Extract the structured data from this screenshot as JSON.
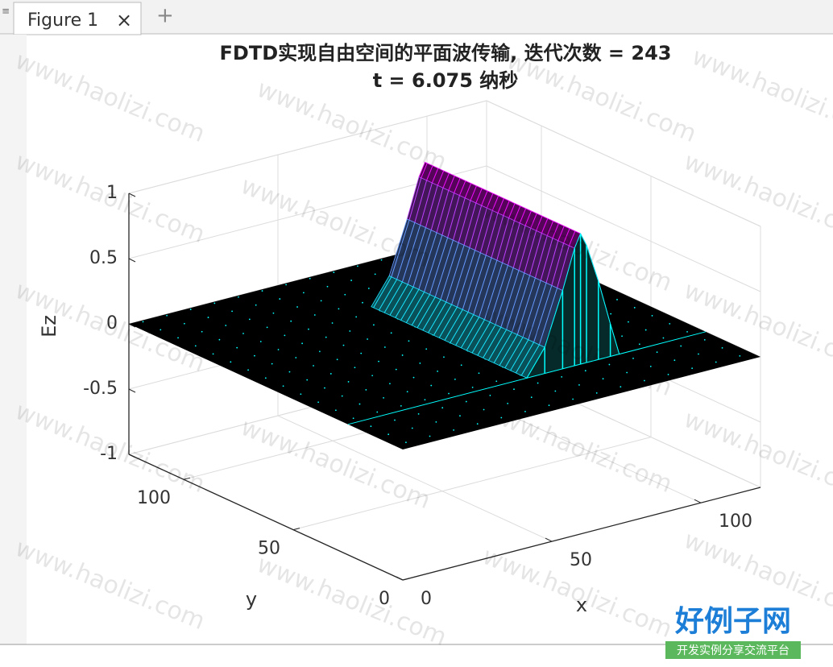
{
  "window": {
    "tab": "Figure 1"
  },
  "chart_data": {
    "type": "surface3d",
    "title": [
      "FDTD实现自由空间的平面波传输, 迭代次数 = 243",
      "t = 6.075 纳秒"
    ],
    "xlabel": "x",
    "ylabel": "y",
    "zlabel": "Ez",
    "xlim": [
      0,
      120
    ],
    "ylim": [
      0,
      125
    ],
    "zlim": [
      -1,
      1
    ],
    "xticks": [
      0,
      50,
      100
    ],
    "yticks": [
      0,
      50,
      100
    ],
    "zticks": [
      -1,
      -0.5,
      0,
      0.5,
      1
    ],
    "grid": true,
    "colormap": [
      "#00ffff",
      "#ff00ff"
    ],
    "x": [
      0,
      60,
      66,
      72,
      76,
      78,
      80,
      84,
      88,
      91,
      120
    ],
    "values": [
      0,
      0,
      0.2,
      0.6,
      0.9,
      1,
      0.9,
      0.6,
      0.25,
      0,
      0
    ],
    "pulse_y": [
      25,
      96
    ]
  },
  "watermark": {
    "text": "www.haolizi.com",
    "logo": "好例子网",
    "slogan": "开发实例分享交流平台"
  }
}
